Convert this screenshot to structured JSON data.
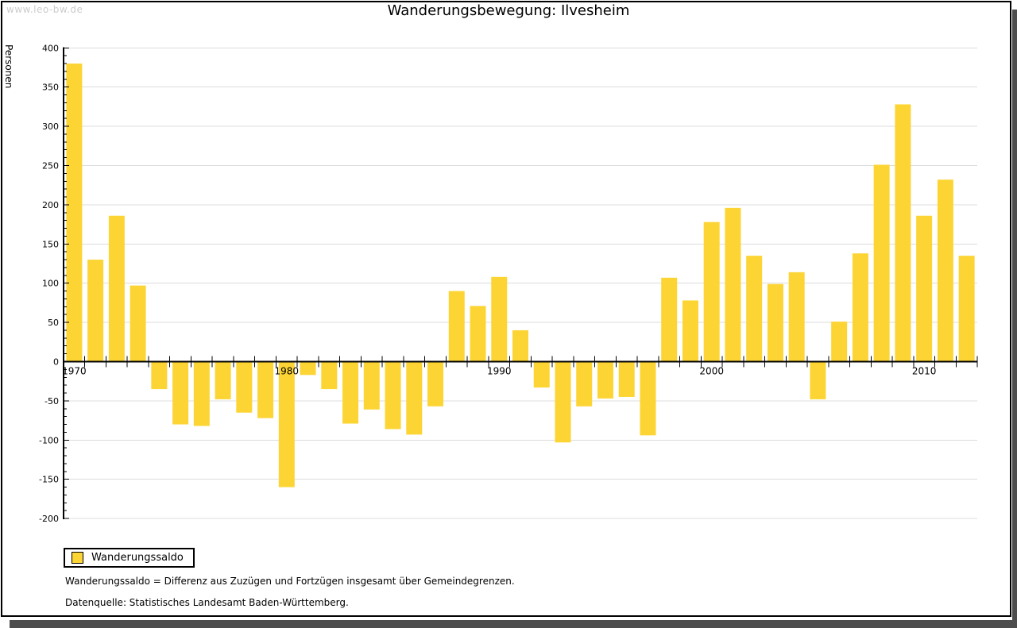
{
  "watermark": "www.leo-bw.de",
  "title": "Wanderungsbewegung: Ilvesheim",
  "legend": {
    "label": "Wanderungssaldo"
  },
  "footnotes": [
    "Wanderungssaldo = Differenz aus Zuzügen und Fortzügen insgesamt über Gemeindegrenzen.",
    "Datenquelle: Statistisches Landesamt Baden-Württemberg."
  ],
  "colors": {
    "bar": "#fcd535",
    "grid": "#dcdcdc",
    "axis": "#000000",
    "watermark": "#cccccc",
    "shadow": "#4d4d4d"
  },
  "chart_data": {
    "type": "bar",
    "title": "Wanderungsbewegung: Ilvesheim",
    "xlabel": "",
    "ylabel": "Personen",
    "ylim": [
      -200,
      400
    ],
    "ytick_step": 50,
    "yminor_step": 10,
    "grid": true,
    "legend_position": "bottom-left",
    "xticks_labeled": [
      1970,
      1980,
      1990,
      2000,
      2010
    ],
    "categories": [
      1970,
      1971,
      1972,
      1973,
      1974,
      1975,
      1976,
      1977,
      1978,
      1979,
      1980,
      1981,
      1982,
      1983,
      1984,
      1985,
      1986,
      1987,
      1988,
      1989,
      1990,
      1991,
      1992,
      1993,
      1994,
      1995,
      1996,
      1997,
      1998,
      1999,
      2000,
      2001,
      2002,
      2003,
      2004,
      2005,
      2006,
      2007,
      2008,
      2009,
      2010,
      2011,
      2012
    ],
    "series": [
      {
        "name": "Wanderungssaldo",
        "values": [
          380,
          130,
          186,
          97,
          -35,
          -80,
          -82,
          -48,
          -65,
          -72,
          -160,
          -17,
          -35,
          -79,
          -61,
          -86,
          -93,
          -57,
          90,
          71,
          108,
          40,
          -33,
          -103,
          -57,
          -47,
          -45,
          -94,
          107,
          78,
          178,
          196,
          135,
          99,
          114,
          -48,
          51,
          138,
          251,
          328,
          186,
          232,
          135
        ]
      }
    ]
  }
}
